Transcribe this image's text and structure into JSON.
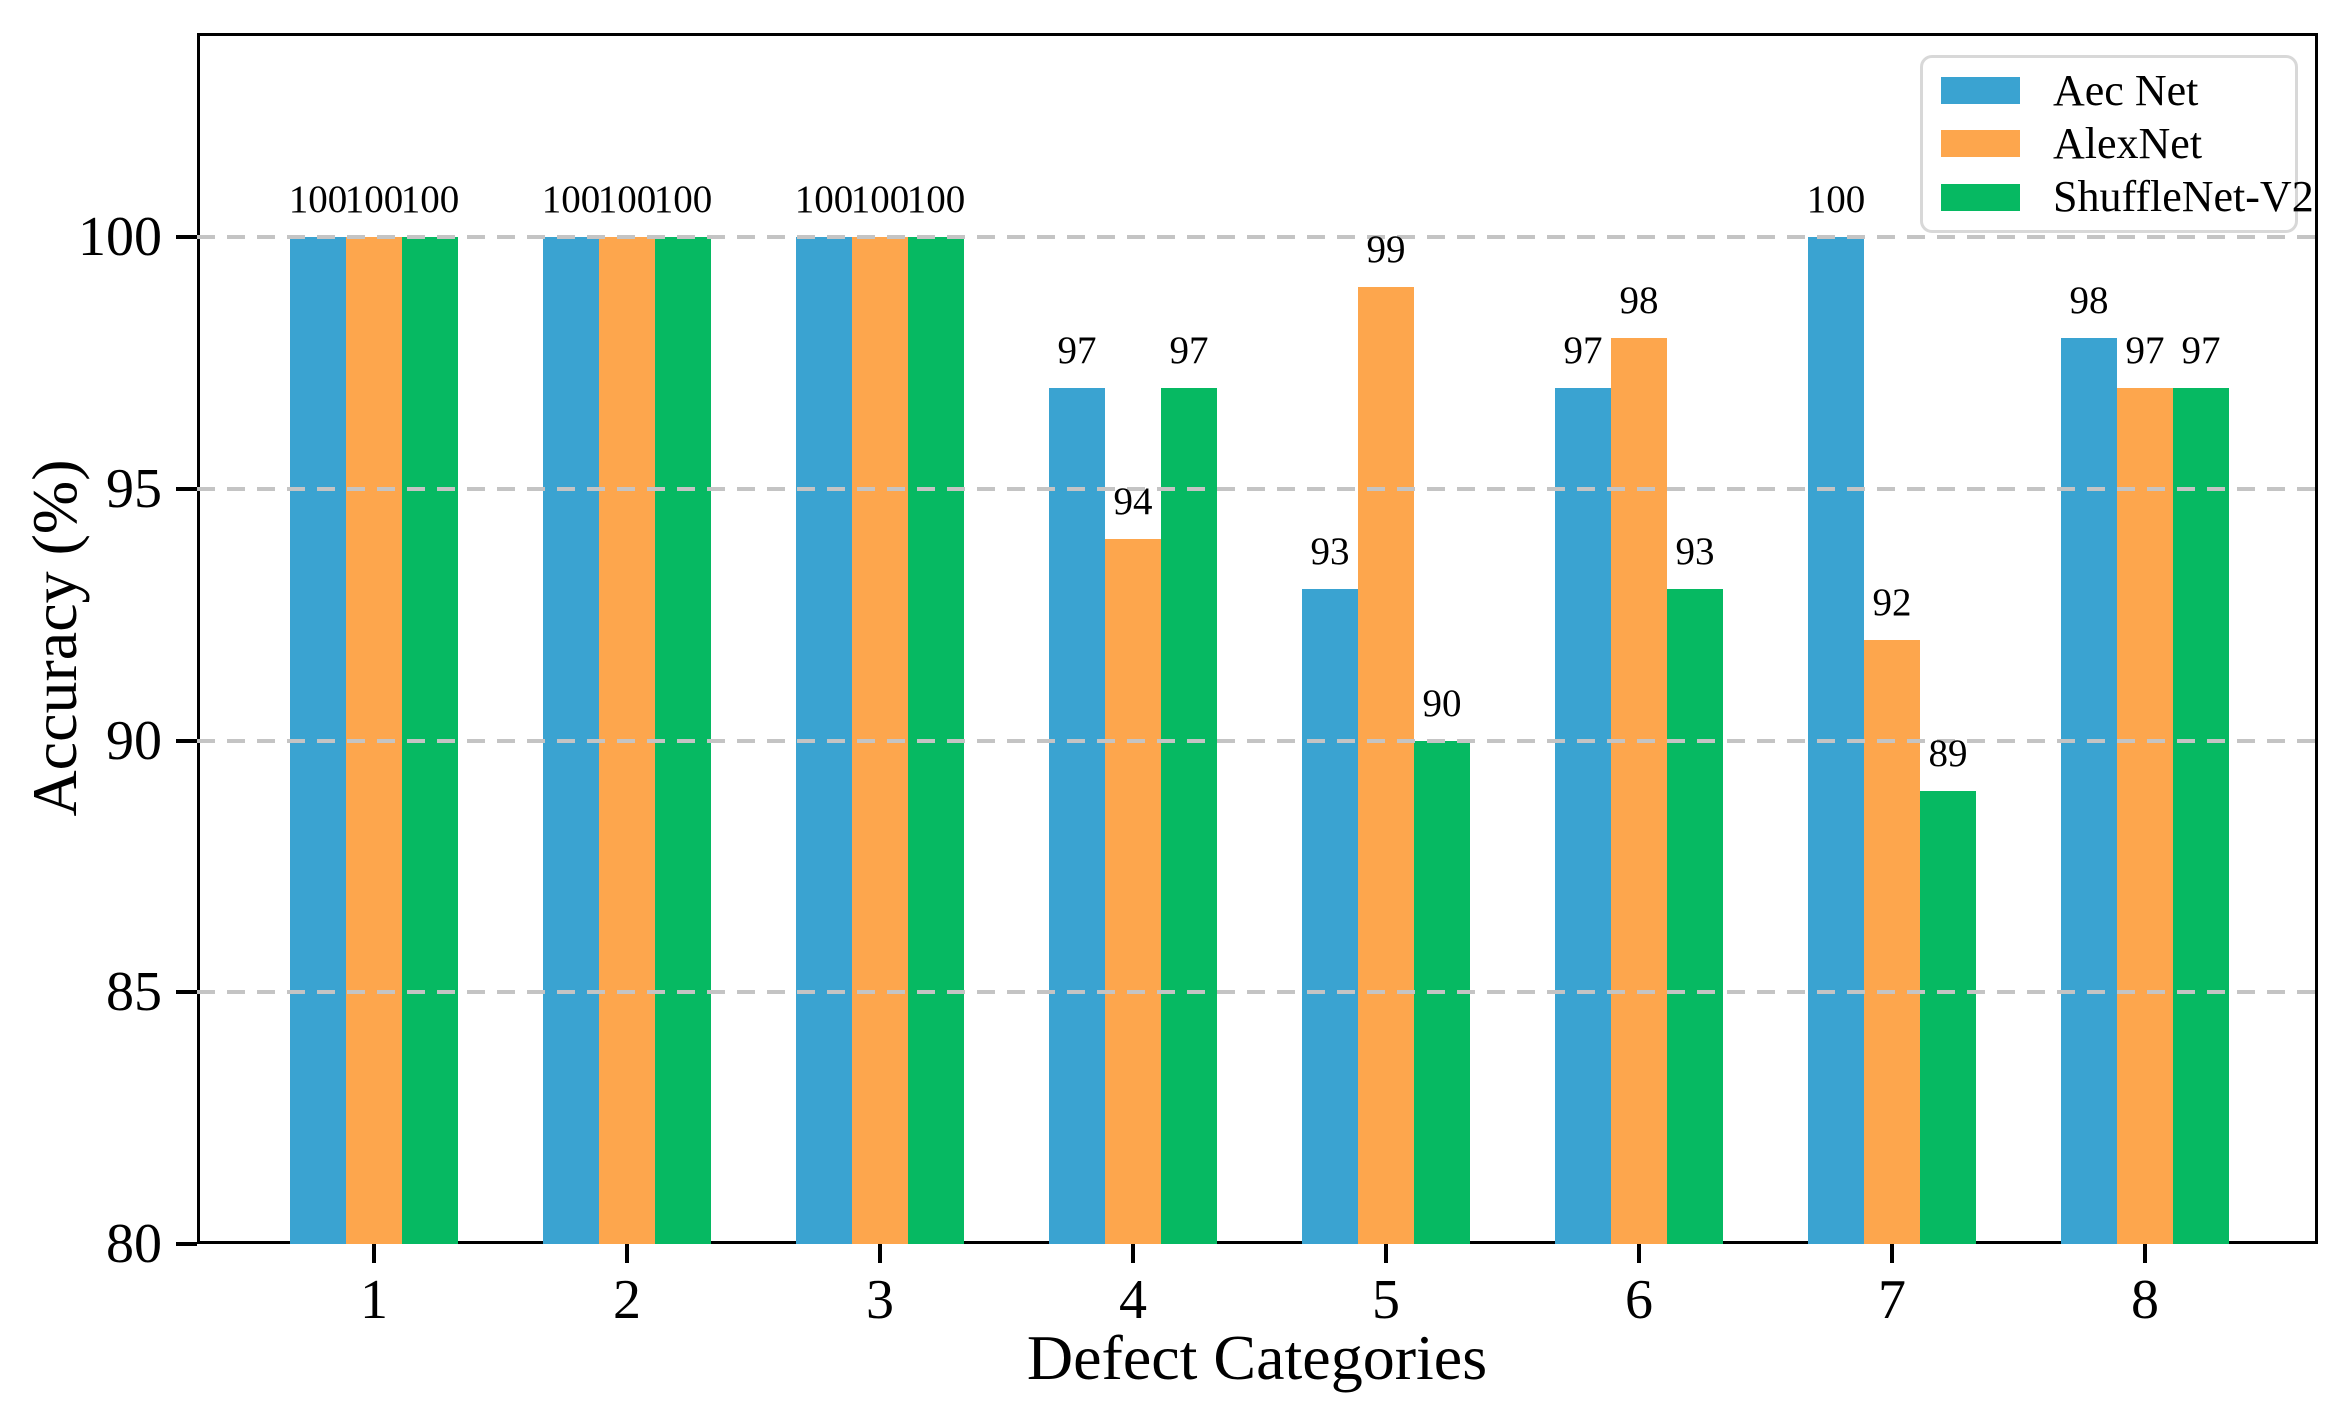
{
  "figure": {
    "background": "#ffffff",
    "text_color": "#000000",
    "gridline_color": "#c4c4c4"
  },
  "axes": {
    "xlabel": "Defect Categories",
    "ylabel": "Accuracy (%)",
    "ytick_labels": [
      "80",
      "85",
      "90",
      "95",
      "100"
    ],
    "xtick_labels": [
      "1",
      "2",
      "3",
      "4",
      "5",
      "6",
      "7",
      "8"
    ]
  },
  "legend": {
    "position": "upper right",
    "items": [
      {
        "label": "Aec Net",
        "color": "#3AA3D1"
      },
      {
        "label": "AlexNet",
        "color": "#FDA64D"
      },
      {
        "label": "ShuffleNet-V2",
        "color": "#06B962"
      }
    ]
  },
  "chart_data": {
    "type": "bar",
    "title": "",
    "categories": [
      "1",
      "2",
      "3",
      "4",
      "5",
      "6",
      "7",
      "8"
    ],
    "series": [
      {
        "name": "Aec Net",
        "color": "#3AA3D1",
        "values": [
          100,
          100,
          100,
          97,
          93,
          97,
          100,
          98
        ]
      },
      {
        "name": "AlexNet",
        "color": "#FDA64D",
        "values": [
          100,
          100,
          100,
          94,
          99,
          98,
          92,
          97
        ]
      },
      {
        "name": "ShuffleNet-V2",
        "color": "#06B962",
        "values": [
          100,
          100,
          100,
          97,
          90,
          93,
          89,
          97
        ]
      }
    ],
    "xlabel": "Defect Categories",
    "ylabel": "Accuracy (%)",
    "ylim": [
      80,
      104
    ],
    "yticks": [
      80,
      85,
      90,
      95,
      100
    ],
    "grid": {
      "axis": "y",
      "style": "dashed",
      "at": [
        85,
        90,
        95,
        100
      ],
      "on_top_of_bars": true
    },
    "legend_position": "upper right",
    "value_labels": true
  }
}
